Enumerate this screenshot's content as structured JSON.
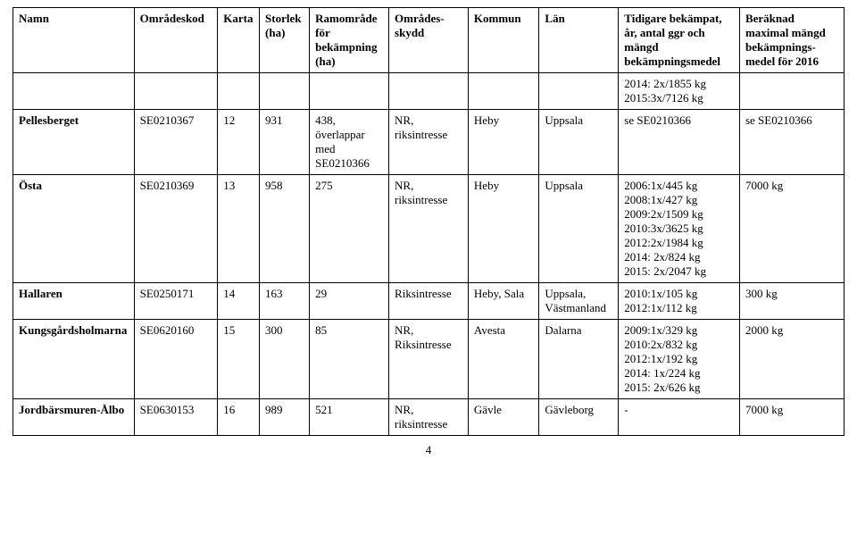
{
  "columns": [
    {
      "label": "Namn",
      "width": "14.5%"
    },
    {
      "label": "Områdeskod",
      "width": "10%"
    },
    {
      "label": "Karta",
      "width": "5%"
    },
    {
      "label": "Storlek (ha)",
      "width": "6%"
    },
    {
      "label": "Ramområde för bekämpning (ha)",
      "width": "9.5%"
    },
    {
      "label": "Områdes-skydd",
      "width": "9.5%"
    },
    {
      "label": "Kommun",
      "width": "8.5%"
    },
    {
      "label": "Län",
      "width": "9.5%"
    },
    {
      "label": "Tidigare bekämpat, år, antal ggr och mängd bekämpningsmedel",
      "width": "14.5%"
    },
    {
      "label": "Beräknad maximal mängd bekämpnings-medel för 2016",
      "width": "12.5%"
    }
  ],
  "filler_row": {
    "tidigare": [
      "2014: 2x/1855 kg",
      "2015:3x/7126 kg"
    ]
  },
  "rows": [
    {
      "namn": "Pellesberget",
      "namn_bold": true,
      "kod": "SE0210367",
      "karta": "12",
      "storlek": "931",
      "ram": [
        "438, överlappar med SE0210366"
      ],
      "skydd": [
        "NR, riksintresse"
      ],
      "kommun": "Heby",
      "lan": "Uppsala",
      "tidigare": [
        "se SE0210366"
      ],
      "beraknad": "se SE0210366"
    },
    {
      "namn": "Östa",
      "namn_bold": true,
      "kod": "SE0210369",
      "karta": "13",
      "storlek": "958",
      "ram": [
        "275"
      ],
      "skydd": [
        "NR, riksintresse"
      ],
      "kommun": "Heby",
      "lan": "Uppsala",
      "tidigare": [
        "2006:1x/445 kg",
        "2008:1x/427 kg",
        "2009:2x/1509 kg",
        "2010:3x/3625 kg",
        "2012:2x/1984 kg",
        "2014: 2x/824 kg",
        "2015: 2x/2047 kg"
      ],
      "beraknad": "7000 kg"
    },
    {
      "namn": "Hallaren",
      "namn_bold": true,
      "kod": "SE0250171",
      "karta": "14",
      "storlek": "163",
      "ram": [
        "29"
      ],
      "skydd": [
        "Riksintresse"
      ],
      "kommun": "Heby, Sala",
      "lan": "Uppsala, Västmanland",
      "tidigare": [
        "2010:1x/105 kg",
        "2012:1x/112 kg"
      ],
      "beraknad": "300 kg"
    },
    {
      "namn": "Kungsgårdsholmarna",
      "namn_bold": true,
      "kod": "SE0620160",
      "karta": "15",
      "storlek": "300",
      "ram": [
        "85"
      ],
      "skydd": [
        "NR, Riksintresse"
      ],
      "kommun": "Avesta",
      "lan": "Dalarna",
      "tidigare": [
        "2009:1x/329 kg",
        "2010:2x/832 kg",
        "2012:1x/192 kg",
        "2014: 1x/224 kg",
        "2015: 2x/626 kg"
      ],
      "beraknad": "2000 kg"
    },
    {
      "namn": "Jordbärsmuren-Ålbo",
      "namn_bold": true,
      "kod": "SE0630153",
      "karta": "16",
      "storlek": "989",
      "ram": [
        "521"
      ],
      "skydd": [
        "NR, riksintresse"
      ],
      "kommun": "Gävle",
      "lan": "Gävleborg",
      "tidigare": [
        "-"
      ],
      "beraknad": "7000 kg"
    }
  ],
  "page_number": "4"
}
